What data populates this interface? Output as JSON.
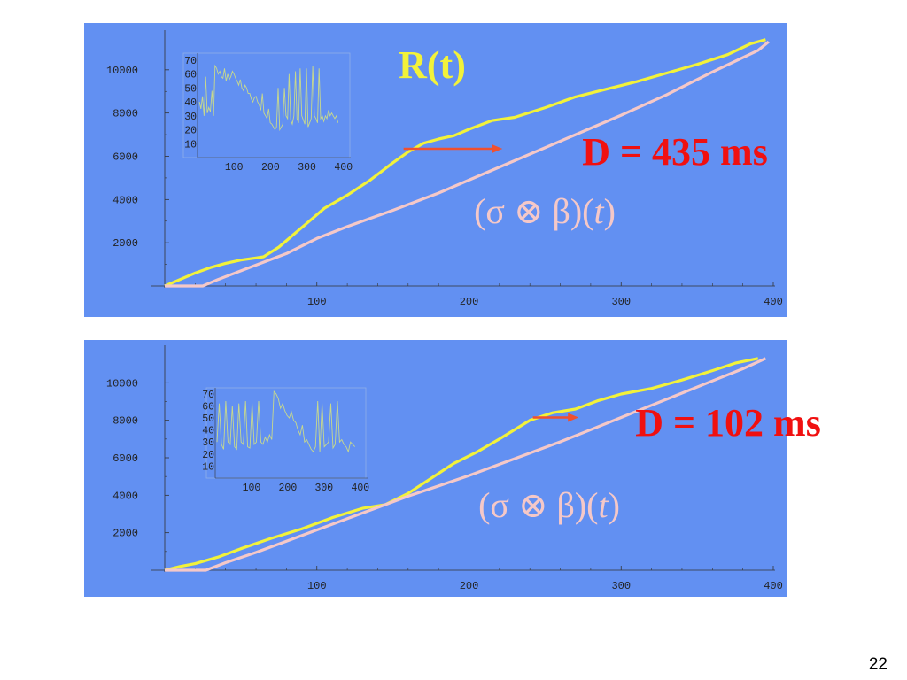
{
  "slide": {
    "page_number": "22"
  },
  "colors": {
    "panel_bg": "#6290F2",
    "r_curve": "#F2F23A",
    "conv_curve": "#F5C8C8",
    "inset_line": "#C8D98C",
    "arrow": "#F05030",
    "delay_text": "#F01010",
    "r_label": "#F2F23A",
    "conv_label": "#F5C8C8"
  },
  "chart_data": [
    {
      "type": "line",
      "labels": {
        "r": "R(t)",
        "delay": "D = 435 ms",
        "conv_parts": [
          "(σ ⊗ β)(",
          "t",
          ")"
        ]
      },
      "xlim": [
        0,
        400
      ],
      "ylim": [
        0,
        12000
      ],
      "x_ticks": [
        "100",
        "200",
        "300",
        "400"
      ],
      "y_ticks": [
        "2000",
        "4000",
        "6000",
        "8000",
        "10000"
      ],
      "series": [
        {
          "key": "R",
          "points": [
            [
              0,
              0
            ],
            [
              10,
              300
            ],
            [
              20,
              600
            ],
            [
              30,
              850
            ],
            [
              40,
              1050
            ],
            [
              50,
              1200
            ],
            [
              60,
              1300
            ],
            [
              65,
              1350
            ],
            [
              75,
              1800
            ],
            [
              85,
              2400
            ],
            [
              95,
              3000
            ],
            [
              105,
              3600
            ],
            [
              120,
              4200
            ],
            [
              135,
              4900
            ],
            [
              150,
              5700
            ],
            [
              160,
              6200
            ],
            [
              170,
              6600
            ],
            [
              180,
              6800
            ],
            [
              190,
              6950
            ],
            [
              200,
              7250
            ],
            [
              215,
              7650
            ],
            [
              230,
              7800
            ],
            [
              250,
              8250
            ],
            [
              270,
              8750
            ],
            [
              290,
              9100
            ],
            [
              310,
              9450
            ],
            [
              330,
              9850
            ],
            [
              350,
              10250
            ],
            [
              370,
              10700
            ],
            [
              385,
              11200
            ],
            [
              395,
              11400
            ]
          ]
        },
        {
          "key": "conv",
          "points": [
            [
              0,
              0
            ],
            [
              25,
              0
            ],
            [
              35,
              300
            ],
            [
              50,
              700
            ],
            [
              65,
              1100
            ],
            [
              80,
              1500
            ],
            [
              100,
              2200
            ],
            [
              120,
              2750
            ],
            [
              150,
              3500
            ],
            [
              180,
              4300
            ],
            [
              210,
              5200
            ],
            [
              240,
              6100
            ],
            [
              270,
              7000
            ],
            [
              300,
              7900
            ],
            [
              330,
              8850
            ],
            [
              360,
              9900
            ],
            [
              390,
              10900
            ],
            [
              397,
              11300
            ]
          ]
        }
      ],
      "delay_arrow": {
        "from": [
          157,
          6350
        ],
        "to": [
          222,
          6350
        ]
      },
      "inset": {
        "xlim": [
          0,
          420
        ],
        "ylim": [
          0,
          75
        ],
        "x_ticks": [
          "100",
          "200",
          "300",
          "400"
        ],
        "y_ticks": [
          "10",
          "20",
          "30",
          "40",
          "50",
          "60",
          "70"
        ],
        "values": [
          40,
          35,
          44,
          30,
          58,
          32,
          36,
          33,
          48,
          30,
          66,
          64,
          60,
          62,
          58,
          57,
          64,
          55,
          60,
          56,
          58,
          62,
          60,
          57,
          55,
          52,
          56,
          50,
          48,
          52,
          50,
          46,
          46,
          42,
          40,
          43,
          44,
          40,
          38,
          34,
          46,
          32,
          30,
          28,
          35,
          25,
          24,
          22,
          20,
          22,
          50,
          20,
          22,
          24,
          50,
          30,
          28,
          60,
          27,
          24,
          30,
          62,
          28,
          25,
          64,
          30,
          27,
          24,
          64,
          22,
          25,
          28,
          66,
          30,
          28,
          25,
          64,
          28,
          30,
          26,
          30,
          28,
          34,
          30,
          32,
          30,
          28,
          30,
          25
        ]
      }
    },
    {
      "type": "line",
      "labels": {
        "delay": "D = 102 ms",
        "conv_parts": [
          "(σ ⊗ β)(",
          "t",
          ")"
        ]
      },
      "xlim": [
        0,
        400
      ],
      "ylim": [
        0,
        12000
      ],
      "x_ticks": [
        "100",
        "200",
        "300",
        "400"
      ],
      "y_ticks": [
        "2000",
        "4000",
        "6000",
        "8000",
        "10000"
      ],
      "series": [
        {
          "key": "R",
          "points": [
            [
              0,
              0
            ],
            [
              10,
              200
            ],
            [
              20,
              350
            ],
            [
              35,
              700
            ],
            [
              50,
              1150
            ],
            [
              70,
              1700
            ],
            [
              90,
              2200
            ],
            [
              110,
              2800
            ],
            [
              130,
              3300
            ],
            [
              145,
              3500
            ],
            [
              150,
              3700
            ],
            [
              160,
              4100
            ],
            [
              175,
              4900
            ],
            [
              190,
              5700
            ],
            [
              205,
              6300
            ],
            [
              220,
              7000
            ],
            [
              240,
              8000
            ],
            [
              255,
              8400
            ],
            [
              270,
              8600
            ],
            [
              285,
              9050
            ],
            [
              300,
              9400
            ],
            [
              320,
              9700
            ],
            [
              340,
              10150
            ],
            [
              360,
              10650
            ],
            [
              375,
              11050
            ],
            [
              390,
              11300
            ]
          ]
        },
        {
          "key": "conv",
          "points": [
            [
              0,
              0
            ],
            [
              27,
              0
            ],
            [
              40,
              400
            ],
            [
              60,
              950
            ],
            [
              80,
              1550
            ],
            [
              100,
              2150
            ],
            [
              120,
              2750
            ],
            [
              140,
              3350
            ],
            [
              160,
              3950
            ],
            [
              180,
              4500
            ],
            [
              200,
              5050
            ],
            [
              220,
              5650
            ],
            [
              240,
              6250
            ],
            [
              260,
              6850
            ],
            [
              280,
              7500
            ],
            [
              300,
              8150
            ],
            [
              320,
              8800
            ],
            [
              340,
              9450
            ],
            [
              360,
              10100
            ],
            [
              380,
              10750
            ],
            [
              395,
              11300
            ]
          ]
        }
      ],
      "delay_arrow": {
        "from": [
          242,
          8150
        ],
        "to": [
          272,
          8150
        ]
      },
      "inset": {
        "xlim": [
          0,
          420
        ],
        "ylim": [
          0,
          75
        ],
        "x_ticks": [
          "100",
          "200",
          "300",
          "400"
        ],
        "y_ticks": [
          "10",
          "20",
          "30",
          "40",
          "50",
          "60",
          "70"
        ],
        "values": [
          30,
          62,
          28,
          24,
          64,
          30,
          28,
          60,
          26,
          24,
          62,
          30,
          28,
          64,
          26,
          25,
          62,
          28,
          30,
          64,
          30,
          28,
          34,
          30,
          36,
          32,
          72,
          70,
          66,
          58,
          62,
          56,
          52,
          50,
          55,
          48,
          46,
          40,
          36,
          44,
          30,
          32,
          28,
          24,
          22,
          26,
          64,
          22,
          62,
          26,
          28,
          30,
          62,
          25,
          28,
          64,
          30,
          32,
          28,
          26,
          22,
          30,
          28,
          26
        ]
      }
    }
  ]
}
